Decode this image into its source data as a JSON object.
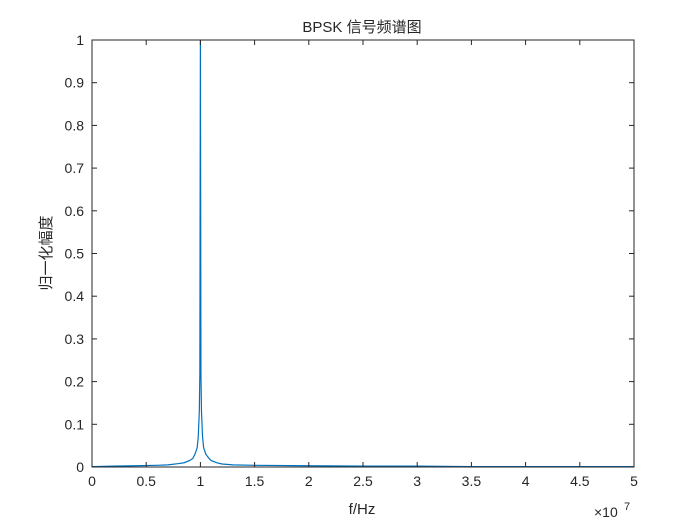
{
  "chart_data": {
    "type": "line",
    "title": "BPSK 信号频谱图",
    "xlabel": "f/Hz",
    "ylabel": "归一化幅度",
    "x_exponent_label": "×10",
    "x_exponent": "7",
    "xlim": [
      0,
      5
    ],
    "ylim": [
      0,
      1
    ],
    "x_ticks": [
      0,
      0.5,
      1,
      1.5,
      2,
      2.5,
      3,
      3.5,
      4,
      4.5,
      5
    ],
    "x_tick_labels": [
      "0",
      "0.5",
      "1",
      "1.5",
      "2",
      "2.5",
      "3",
      "3.5",
      "4",
      "4.5",
      "5"
    ],
    "y_ticks": [
      0,
      0.1,
      0.2,
      0.3,
      0.4,
      0.5,
      0.6,
      0.7,
      0.8,
      0.9,
      1
    ],
    "y_tick_labels": [
      "0",
      "0.1",
      "0.2",
      "0.3",
      "0.4",
      "0.5",
      "0.6",
      "0.7",
      "0.8",
      "0.9",
      "1"
    ],
    "grid": false,
    "line_color": "#0072BD",
    "series": [
      {
        "x": [
          0,
          0.2,
          0.4,
          0.6,
          0.7,
          0.8,
          0.85,
          0.9,
          0.93,
          0.95,
          0.97,
          0.98,
          0.99,
          0.995,
          1.0,
          1.005,
          1.01,
          1.02,
          1.03,
          1.05,
          1.08,
          1.1,
          1.15,
          1.2,
          1.3,
          1.5,
          2.0,
          2.5,
          3.0,
          3.5,
          4.0,
          4.5,
          5.0
        ],
        "values": [
          0.001,
          0.002,
          0.003,
          0.004,
          0.005,
          0.008,
          0.01,
          0.015,
          0.02,
          0.03,
          0.045,
          0.07,
          0.13,
          0.22,
          1.0,
          0.22,
          0.13,
          0.07,
          0.045,
          0.03,
          0.02,
          0.015,
          0.01,
          0.007,
          0.005,
          0.004,
          0.003,
          0.002,
          0.002,
          0.001,
          0.001,
          0.001,
          0.001
        ]
      }
    ]
  }
}
